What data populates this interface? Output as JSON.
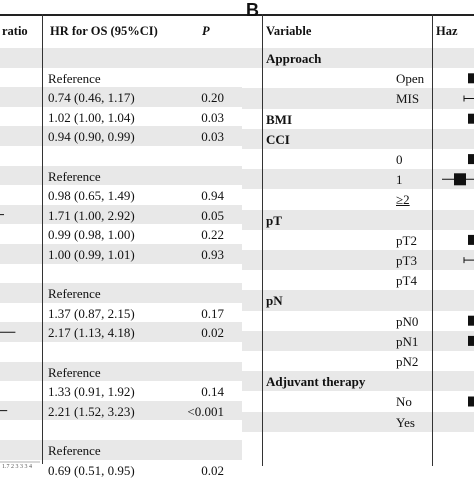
{
  "panel_a": {
    "label": "",
    "header": {
      "col1": "ratio",
      "col2": "HR for OS (95%CI)",
      "col3": "P"
    },
    "rows": [
      {
        "hr": "",
        "p": "",
        "shade": true
      },
      {
        "hr": "Reference",
        "p": "",
        "shade": false
      },
      {
        "hr": "0.74 (0.46, 1.17)",
        "p": "0.20",
        "shade": true
      },
      {
        "hr": "1.02 (1.00, 1.04)",
        "p": "0.03",
        "shade": false
      },
      {
        "hr": "0.94 (0.90, 0.99)",
        "p": "0.03",
        "shade": true
      },
      {
        "hr": "",
        "p": "",
        "shade": false
      },
      {
        "hr": "Reference",
        "p": "",
        "shade": true
      },
      {
        "hr": "0.98 (0.65, 1.49)",
        "p": "0.94",
        "shade": false
      },
      {
        "hr": "1.71 (1.00, 2.92)",
        "p": "0.05",
        "shade": true
      },
      {
        "hr": "0.99 (0.98, 1.00)",
        "p": "0.22",
        "shade": false
      },
      {
        "hr": "1.00 (0.99, 1.01)",
        "p": "0.93",
        "shade": true
      },
      {
        "hr": "",
        "p": "",
        "shade": false
      },
      {
        "hr": "Reference",
        "p": "",
        "shade": true
      },
      {
        "hr": "1.37 (0.87, 2.15)",
        "p": "0.17",
        "shade": false
      },
      {
        "hr": "2.17 (1.13, 4.18)",
        "p": "0.02",
        "shade": true
      },
      {
        "hr": "",
        "p": "",
        "shade": false
      },
      {
        "hr": "Reference",
        "p": "",
        "shade": true
      },
      {
        "hr": "1.33 (0.91, 1.92)",
        "p": "0.14",
        "shade": false
      },
      {
        "hr": "2.21 (1.52, 3.23)",
        "p": "<0.001",
        "shade": true
      },
      {
        "hr": "",
        "p": "",
        "shade": false
      },
      {
        "hr": "Reference",
        "p": "",
        "shade": true
      },
      {
        "hr": "0.69 (0.51, 0.95)",
        "p": "0.02",
        "shade": false
      }
    ],
    "axis_ticks": "1.7 2 3 3 3 4"
  },
  "panel_b": {
    "label": "B",
    "header": {
      "col1": "Variable",
      "col2": "Haz"
    },
    "rows": [
      {
        "text": "Approach",
        "bold": true,
        "sub": false,
        "shade": true
      },
      {
        "text": "Open",
        "bold": false,
        "sub": true,
        "shade": false
      },
      {
        "text": "MIS",
        "bold": false,
        "sub": true,
        "shade": true
      },
      {
        "text": "BMI",
        "bold": true,
        "sub": false,
        "shade": false
      },
      {
        "text": "CCI",
        "bold": true,
        "sub": false,
        "shade": true
      },
      {
        "text": "0",
        "bold": false,
        "sub": true,
        "shade": false
      },
      {
        "text": "1",
        "bold": false,
        "sub": true,
        "shade": true
      },
      {
        "text": "≥2",
        "bold": false,
        "sub": true,
        "shade": false,
        "underline": true
      },
      {
        "text": "pT",
        "bold": true,
        "sub": false,
        "shade": true
      },
      {
        "text": "pT2",
        "bold": false,
        "sub": true,
        "shade": false
      },
      {
        "text": "pT3",
        "bold": false,
        "sub": true,
        "shade": true
      },
      {
        "text": "pT4",
        "bold": false,
        "sub": true,
        "shade": false
      },
      {
        "text": "pN",
        "bold": true,
        "sub": false,
        "shade": true
      },
      {
        "text": "pN0",
        "bold": false,
        "sub": true,
        "shade": false
      },
      {
        "text": "pN1",
        "bold": false,
        "sub": true,
        "shade": true
      },
      {
        "text": "pN2",
        "bold": false,
        "sub": true,
        "shade": false
      },
      {
        "text": "Adjuvant therapy",
        "bold": true,
        "sub": false,
        "shade": true
      },
      {
        "text": "No",
        "bold": false,
        "sub": true,
        "shade": false
      },
      {
        "text": "Yes",
        "bold": false,
        "sub": true,
        "shade": true
      }
    ]
  },
  "chart_data": {
    "type": "table",
    "title": "",
    "panels": [
      {
        "label": "",
        "columns": [
          "ratio",
          "HR for OS (95%CI)",
          "P"
        ],
        "estimates": [
          {
            "row": 1,
            "hr": 1.0,
            "lo": 1.0,
            "hi": 1.0,
            "reference": true
          },
          {
            "row": 2,
            "hr": 0.74,
            "lo": 0.46,
            "hi": 1.17
          },
          {
            "row": 3,
            "hr": 1.02,
            "lo": 1.0,
            "hi": 1.04
          },
          {
            "row": 4,
            "hr": 0.94,
            "lo": 0.9,
            "hi": 0.99
          },
          {
            "row": 6,
            "hr": 1.0,
            "lo": 1.0,
            "hi": 1.0,
            "reference": true
          },
          {
            "row": 7,
            "hr": 0.98,
            "lo": 0.65,
            "hi": 1.49
          },
          {
            "row": 8,
            "hr": 1.71,
            "lo": 1.0,
            "hi": 2.92
          },
          {
            "row": 9,
            "hr": 0.99,
            "lo": 0.98,
            "hi": 1.0
          },
          {
            "row": 10,
            "hr": 1.0,
            "lo": 0.99,
            "hi": 1.01
          },
          {
            "row": 12,
            "hr": 1.0,
            "lo": 1.0,
            "hi": 1.0,
            "reference": true
          },
          {
            "row": 13,
            "hr": 1.37,
            "lo": 0.87,
            "hi": 2.15
          },
          {
            "row": 14,
            "hr": 2.17,
            "lo": 1.13,
            "hi": 4.18
          },
          {
            "row": 16,
            "hr": 1.0,
            "lo": 1.0,
            "hi": 1.0,
            "reference": true
          },
          {
            "row": 17,
            "hr": 1.33,
            "lo": 0.91,
            "hi": 1.92
          },
          {
            "row": 18,
            "hr": 2.21,
            "lo": 1.52,
            "hi": 3.23
          },
          {
            "row": 20,
            "hr": 1.0,
            "lo": 1.0,
            "hi": 1.0,
            "reference": true
          },
          {
            "row": 21,
            "hr": 0.69,
            "lo": 0.51,
            "hi": 0.95
          }
        ]
      },
      {
        "label": "B",
        "columns": [
          "Variable",
          "Haz"
        ],
        "variables": [
          "Approach",
          "Open",
          "MIS",
          "BMI",
          "CCI",
          "0",
          "1",
          "≥2",
          "pT",
          "pT2",
          "pT3",
          "pT4",
          "pN",
          "pN0",
          "pN1",
          "pN2",
          "Adjuvant therapy",
          "No",
          "Yes"
        ]
      }
    ]
  }
}
